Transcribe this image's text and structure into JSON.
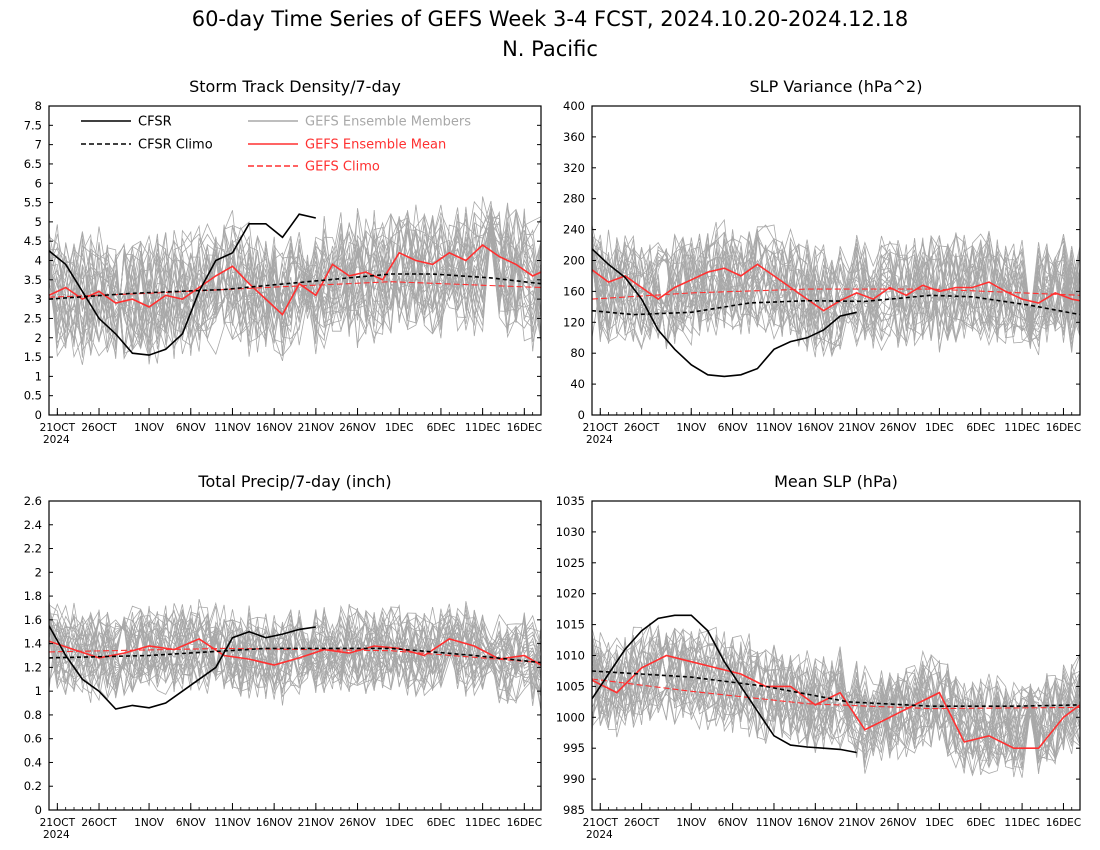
{
  "page": {
    "title_line1": "60-day Time Series of GEFS Week 3-4 FCST, 2024.10.20-2024.12.18",
    "title_line2": "N. Pacific"
  },
  "legend": {
    "cfsr": "CFSR",
    "cfsr_climo": "CFSR Climo",
    "members": "GEFS Ensemble Members",
    "mean": "GEFS Ensemble Mean",
    "gefs_climo": "GEFS Climo"
  },
  "colors": {
    "cfsr": "#000000",
    "members": "#a8a8a8",
    "mean": "#ff3030",
    "gefs_climo": "#ff3030",
    "frame": "#000000"
  },
  "x_axis": {
    "tick_labels": [
      "21OCT",
      "26OCT",
      "1NOV",
      "6NOV",
      "11NOV",
      "16NOV",
      "21NOV",
      "26NOV",
      "1DEC",
      "6DEC",
      "11DEC",
      "16DEC"
    ],
    "year_label": "2024",
    "start_date": "2024-10-20",
    "end_date": "2024-12-18"
  },
  "chart_data": [
    {
      "type": "line",
      "title": "Storm Track Density/7-day",
      "ylim": [
        0,
        8
      ],
      "yticks": [
        "0",
        "0.5",
        "1",
        "1.5",
        "2",
        "2.5",
        "3",
        "3.5",
        "4",
        "4.5",
        "5",
        "5.5",
        "6",
        "6.5",
        "7",
        "7.5",
        "8"
      ],
      "member_spread": 1.25,
      "has_legend": true,
      "series": [
        {
          "name": "CFSR",
          "dates": [
            "2024-10-20",
            "2024-10-22",
            "2024-10-24",
            "2024-10-26",
            "2024-10-28",
            "2024-10-30",
            "2024-11-01",
            "2024-11-03",
            "2024-11-05",
            "2024-11-07",
            "2024-11-09",
            "2024-11-11",
            "2024-11-13",
            "2024-11-15",
            "2024-11-17",
            "2024-11-19",
            "2024-11-21"
          ],
          "values": [
            4.25,
            3.9,
            3.2,
            2.5,
            2.1,
            1.6,
            1.55,
            1.7,
            2.1,
            3.2,
            4.0,
            4.2,
            4.95,
            4.95,
            4.6,
            5.2,
            5.1
          ]
        },
        {
          "name": "CFSR Climo",
          "dates": [
            "2024-10-20",
            "2024-10-30",
            "2024-11-10",
            "2024-11-20",
            "2024-11-30",
            "2024-12-05",
            "2024-12-12",
            "2024-12-18"
          ],
          "values": [
            3.0,
            3.15,
            3.25,
            3.45,
            3.65,
            3.65,
            3.55,
            3.4
          ]
        },
        {
          "name": "GEFS Ensemble Mean",
          "dates": [
            "2024-10-20",
            "2024-10-22",
            "2024-10-24",
            "2024-10-26",
            "2024-10-28",
            "2024-10-30",
            "2024-11-01",
            "2024-11-03",
            "2024-11-05",
            "2024-11-07",
            "2024-11-09",
            "2024-11-11",
            "2024-11-13",
            "2024-11-15",
            "2024-11-17",
            "2024-11-19",
            "2024-11-21",
            "2024-11-23",
            "2024-11-25",
            "2024-11-27",
            "2024-11-29",
            "2024-12-01",
            "2024-12-03",
            "2024-12-05",
            "2024-12-07",
            "2024-12-09",
            "2024-12-11",
            "2024-12-13",
            "2024-12-15",
            "2024-12-17",
            "2024-12-18"
          ],
          "values": [
            3.1,
            3.3,
            3.0,
            3.2,
            2.9,
            3.0,
            2.8,
            3.1,
            3.0,
            3.3,
            3.6,
            3.85,
            3.4,
            3.0,
            2.6,
            3.4,
            3.1,
            3.9,
            3.6,
            3.7,
            3.5,
            4.2,
            4.0,
            3.9,
            4.2,
            4.0,
            4.4,
            4.1,
            3.9,
            3.6,
            3.7
          ]
        },
        {
          "name": "GEFS Climo",
          "dates": [
            "2024-10-20",
            "2024-11-01",
            "2024-11-15",
            "2024-11-30",
            "2024-12-18"
          ],
          "values": [
            3.05,
            3.15,
            3.3,
            3.45,
            3.3
          ]
        }
      ]
    },
    {
      "type": "line",
      "title": "SLP Variance (hPa^2)",
      "ylim": [
        0,
        400
      ],
      "yticks": [
        "0",
        "40",
        "80",
        "120",
        "160",
        "200",
        "240",
        "280",
        "320",
        "360",
        "400"
      ],
      "member_spread": 55,
      "has_legend": false,
      "series": [
        {
          "name": "CFSR",
          "dates": [
            "2024-10-20",
            "2024-10-22",
            "2024-10-24",
            "2024-10-26",
            "2024-10-28",
            "2024-10-30",
            "2024-11-01",
            "2024-11-03",
            "2024-11-05",
            "2024-11-07",
            "2024-11-09",
            "2024-11-11",
            "2024-11-13",
            "2024-11-15",
            "2024-11-17",
            "2024-11-19",
            "2024-11-21"
          ],
          "values": [
            215,
            195,
            178,
            150,
            110,
            85,
            65,
            52,
            50,
            52,
            60,
            85,
            95,
            100,
            110,
            128,
            133
          ]
        },
        {
          "name": "CFSR Climo",
          "dates": [
            "2024-10-20",
            "2024-10-25",
            "2024-11-01",
            "2024-11-08",
            "2024-11-15",
            "2024-11-22",
            "2024-11-30",
            "2024-12-05",
            "2024-12-12",
            "2024-12-18"
          ],
          "values": [
            135,
            130,
            133,
            145,
            148,
            147,
            155,
            153,
            142,
            130
          ]
        },
        {
          "name": "GEFS Ensemble Mean",
          "dates": [
            "2024-10-20",
            "2024-10-22",
            "2024-10-24",
            "2024-10-26",
            "2024-10-28",
            "2024-10-30",
            "2024-11-01",
            "2024-11-03",
            "2024-11-05",
            "2024-11-07",
            "2024-11-09",
            "2024-11-11",
            "2024-11-13",
            "2024-11-15",
            "2024-11-17",
            "2024-11-19",
            "2024-11-21",
            "2024-11-23",
            "2024-11-25",
            "2024-11-27",
            "2024-11-29",
            "2024-12-01",
            "2024-12-03",
            "2024-12-05",
            "2024-12-07",
            "2024-12-09",
            "2024-12-11",
            "2024-12-13",
            "2024-12-15",
            "2024-12-17",
            "2024-12-18"
          ],
          "values": [
            188,
            172,
            180,
            165,
            150,
            165,
            175,
            185,
            190,
            180,
            195,
            180,
            165,
            150,
            135,
            148,
            158,
            150,
            165,
            155,
            168,
            160,
            165,
            165,
            172,
            160,
            150,
            145,
            158,
            150,
            148
          ]
        },
        {
          "name": "GEFS Climo",
          "dates": [
            "2024-10-20",
            "2024-11-01",
            "2024-11-15",
            "2024-11-30",
            "2024-12-18"
          ],
          "values": [
            150,
            158,
            163,
            163,
            155
          ]
        }
      ]
    },
    {
      "type": "line",
      "title": "Total Precip/7-day (inch)",
      "ylim": [
        0,
        2.6
      ],
      "yticks": [
        "0",
        "0.2",
        "0.4",
        "0.6",
        "0.8",
        "1",
        "1.2",
        "1.4",
        "1.6",
        "1.8",
        "2",
        "2.2",
        "2.4",
        "2.6"
      ],
      "member_spread": 0.28,
      "has_legend": false,
      "series": [
        {
          "name": "CFSR",
          "dates": [
            "2024-10-20",
            "2024-10-22",
            "2024-10-24",
            "2024-10-26",
            "2024-10-28",
            "2024-10-30",
            "2024-11-01",
            "2024-11-03",
            "2024-11-05",
            "2024-11-07",
            "2024-11-09",
            "2024-11-11",
            "2024-11-13",
            "2024-11-15",
            "2024-11-17",
            "2024-11-19",
            "2024-11-21"
          ],
          "values": [
            1.55,
            1.3,
            1.1,
            1.0,
            0.85,
            0.88,
            0.86,
            0.9,
            1.0,
            1.1,
            1.2,
            1.45,
            1.5,
            1.45,
            1.48,
            1.52,
            1.54
          ]
        },
        {
          "name": "CFSR Climo",
          "dates": [
            "2024-10-20",
            "2024-11-01",
            "2024-11-15",
            "2024-11-30",
            "2024-12-10",
            "2024-12-18"
          ],
          "values": [
            1.28,
            1.3,
            1.36,
            1.36,
            1.3,
            1.24
          ]
        },
        {
          "name": "GEFS Ensemble Mean",
          "dates": [
            "2024-10-20",
            "2024-10-23",
            "2024-10-26",
            "2024-10-29",
            "2024-11-01",
            "2024-11-04",
            "2024-11-07",
            "2024-11-10",
            "2024-11-13",
            "2024-11-16",
            "2024-11-19",
            "2024-11-22",
            "2024-11-25",
            "2024-11-28",
            "2024-12-01",
            "2024-12-04",
            "2024-12-07",
            "2024-12-10",
            "2024-12-13",
            "2024-12-16",
            "2024-12-18"
          ],
          "values": [
            1.42,
            1.35,
            1.28,
            1.32,
            1.38,
            1.35,
            1.44,
            1.3,
            1.27,
            1.22,
            1.28,
            1.35,
            1.32,
            1.38,
            1.36,
            1.3,
            1.44,
            1.38,
            1.27,
            1.3,
            1.22
          ]
        },
        {
          "name": "GEFS Climo",
          "dates": [
            "2024-10-20",
            "2024-11-10",
            "2024-11-30",
            "2024-12-18"
          ],
          "values": [
            1.33,
            1.36,
            1.34,
            1.24
          ]
        }
      ]
    },
    {
      "type": "line",
      "title": "Mean SLP (hPa)",
      "ylim": [
        985,
        1035
      ],
      "yticks": [
        "985",
        "990",
        "995",
        "1000",
        "1005",
        "1010",
        "1015",
        "1020",
        "1025",
        "1030",
        "1035"
      ],
      "member_spread": 6.0,
      "has_legend": false,
      "series": [
        {
          "name": "CFSR",
          "dates": [
            "2024-10-20",
            "2024-10-22",
            "2024-10-24",
            "2024-10-26",
            "2024-10-28",
            "2024-10-30",
            "2024-11-01",
            "2024-11-03",
            "2024-11-05",
            "2024-11-07",
            "2024-11-09",
            "2024-11-11",
            "2024-11-13",
            "2024-11-15",
            "2024-11-17",
            "2024-11-19",
            "2024-11-21"
          ],
          "values": [
            1003,
            1007,
            1011,
            1014,
            1016,
            1016.5,
            1016.5,
            1014,
            1009,
            1005,
            1001,
            997,
            995.5,
            995.2,
            995,
            994.8,
            994.3
          ]
        },
        {
          "name": "CFSR Climo",
          "dates": [
            "2024-10-20",
            "2024-11-01",
            "2024-11-10",
            "2024-11-20",
            "2024-11-30",
            "2024-12-10",
            "2024-12-18"
          ],
          "values": [
            1007.5,
            1006.5,
            1005,
            1002.5,
            1001.8,
            1001.8,
            1002
          ]
        },
        {
          "name": "GEFS Ensemble Mean",
          "dates": [
            "2024-10-20",
            "2024-10-23",
            "2024-10-26",
            "2024-10-29",
            "2024-11-01",
            "2024-11-04",
            "2024-11-07",
            "2024-11-10",
            "2024-11-13",
            "2024-11-16",
            "2024-11-19",
            "2024-11-22",
            "2024-11-25",
            "2024-11-28",
            "2024-12-01",
            "2024-12-04",
            "2024-12-07",
            "2024-12-10",
            "2024-12-13",
            "2024-12-16",
            "2024-12-18"
          ],
          "values": [
            1006,
            1004,
            1008,
            1010,
            1009,
            1008,
            1007,
            1005,
            1005,
            1002,
            1004,
            998,
            1000,
            1002,
            1004,
            996,
            997,
            995,
            995,
            1000,
            1002
          ]
        },
        {
          "name": "GEFS Climo",
          "dates": [
            "2024-10-20",
            "2024-11-01",
            "2024-11-15",
            "2024-11-30",
            "2024-12-18"
          ],
          "values": [
            1006.2,
            1004.2,
            1002.2,
            1001.4,
            1001.6
          ]
        }
      ]
    }
  ]
}
